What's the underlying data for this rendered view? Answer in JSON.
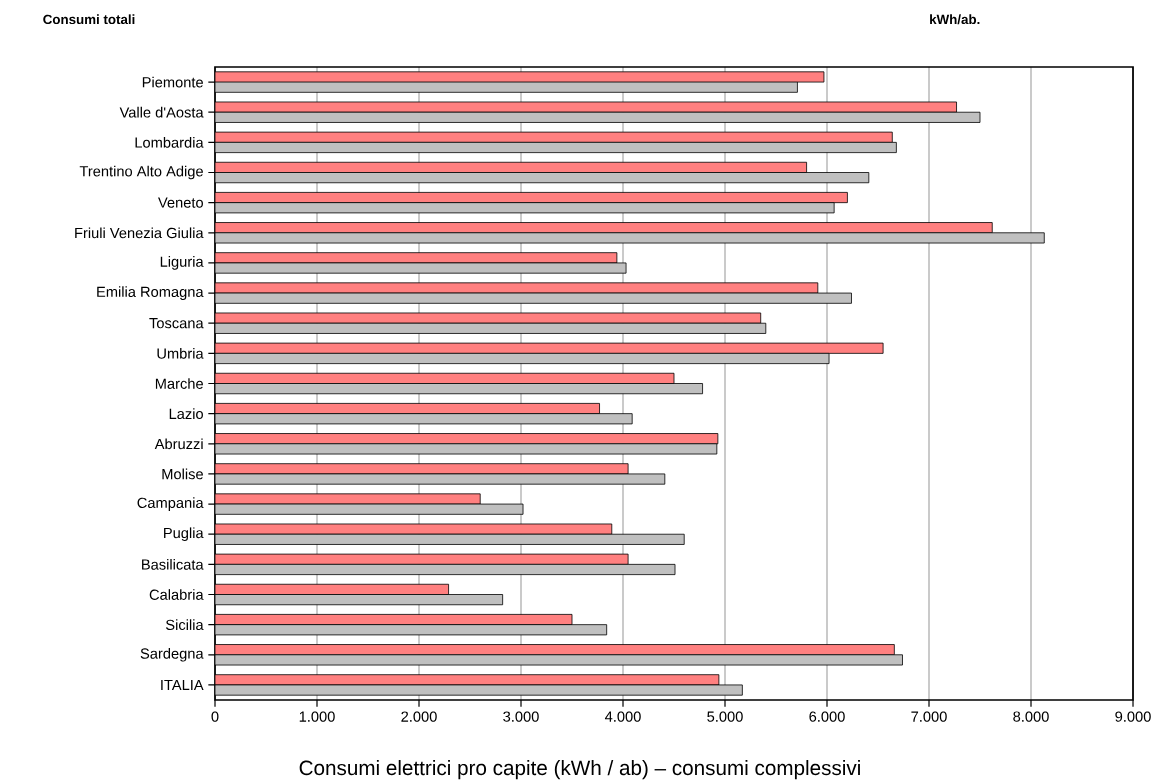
{
  "chart_data": {
    "type": "bar",
    "orientation": "horizontal",
    "title": "Consumi totali",
    "annotations": [
      "kWh/ab.",
      "Consumi elettrici pro capite (kWh / ab) – consumi complessivi"
    ],
    "categories": [
      "Piemonte",
      "Valle d'Aosta",
      "Lombardia",
      "Trentino Alto Adige",
      "Veneto",
      "Friuli Venezia Giulia",
      "Liguria",
      "Emilia Romagna",
      "Toscana",
      "Umbria",
      "Marche",
      "Lazio",
      "Abruzzi",
      "Molise",
      "Campania",
      "Puglia",
      "Basilicata",
      "Calabria",
      "Sicilia",
      "Sardegna",
      "ITALIA"
    ],
    "series": [
      {
        "color": "#ff8080",
        "values": [
          5970,
          7270,
          6640,
          5800,
          6200,
          7620,
          3940,
          5910,
          5350,
          6550,
          4500,
          3770,
          4930,
          4050,
          2600,
          3890,
          4050,
          2290,
          3500,
          6660,
          4940
        ]
      },
      {
        "color": "#c0c0c0",
        "values": [
          5710,
          7500,
          6680,
          6410,
          6070,
          8130,
          4030,
          6240,
          5400,
          6020,
          4780,
          4090,
          4920,
          4410,
          3020,
          4600,
          4510,
          2820,
          3840,
          6740,
          5170
        ]
      }
    ],
    "xlim": [
      0,
      9000
    ],
    "xticks": [
      0,
      {
        "value": 1000,
        "label": "1.000"
      },
      {
        "value": 2000,
        "label": "2.000"
      },
      {
        "value": 3000,
        "label": "3.000"
      },
      {
        "value": 4000,
        "label": "4.000"
      },
      {
        "value": 5000,
        "label": "5.000"
      },
      {
        "value": 6000,
        "label": "6.000"
      },
      {
        "value": 7000,
        "label": "7.000"
      },
      {
        "value": 8000,
        "label": "8.000"
      },
      {
        "value": 9000,
        "label": "9.000"
      }
    ],
    "grid": "x"
  }
}
